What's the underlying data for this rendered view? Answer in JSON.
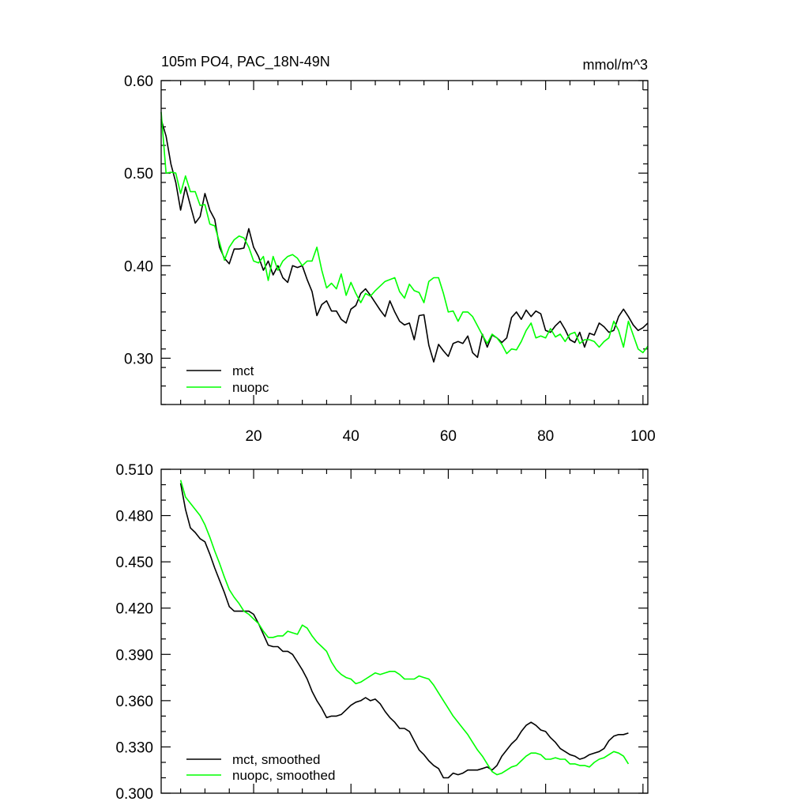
{
  "chart_data": [
    {
      "type": "line",
      "title": "105m PO4, PAC_18N-49N",
      "units_label": "mmol/m^3",
      "xlim": [
        1,
        101
      ],
      "ylim": [
        0.25,
        0.6
      ],
      "yticks": [
        0.3,
        0.4,
        0.5,
        0.6
      ],
      "ytick_labels": [
        "0.30",
        "0.40",
        "0.50",
        "0.60"
      ],
      "xticks": [
        20,
        40,
        60,
        80,
        100
      ],
      "xtick_labels": [
        "20",
        "40",
        "60",
        "80",
        "100"
      ],
      "legend_position": "bottom-left",
      "x": [
        1,
        2,
        3,
        4,
        5,
        6,
        7,
        8,
        9,
        10,
        11,
        12,
        13,
        14,
        15,
        16,
        17,
        18,
        19,
        20,
        21,
        22,
        23,
        24,
        25,
        26,
        27,
        28,
        29,
        30,
        31,
        32,
        33,
        34,
        35,
        36,
        37,
        38,
        39,
        40,
        41,
        42,
        43,
        44,
        45,
        46,
        47,
        48,
        49,
        50,
        51,
        52,
        53,
        54,
        55,
        56,
        57,
        58,
        59,
        60,
        61,
        62,
        63,
        64,
        65,
        66,
        67,
        68,
        69,
        70,
        71,
        72,
        73,
        74,
        75,
        76,
        77,
        78,
        79,
        80,
        81,
        82,
        83,
        84,
        85,
        86,
        87,
        88,
        89,
        90,
        91,
        92,
        93,
        94,
        95,
        96,
        97,
        98,
        99,
        100,
        101
      ],
      "series": [
        {
          "name": "mct",
          "color": "#000000",
          "values": [
            0.558,
            0.54,
            0.51,
            0.49,
            0.46,
            0.485,
            0.465,
            0.446,
            0.453,
            0.478,
            0.46,
            0.45,
            0.42,
            0.408,
            0.402,
            0.418,
            0.418,
            0.419,
            0.44,
            0.42,
            0.41,
            0.395,
            0.405,
            0.39,
            0.4,
            0.387,
            0.382,
            0.4,
            0.398,
            0.4,
            0.385,
            0.372,
            0.346,
            0.358,
            0.362,
            0.351,
            0.351,
            0.342,
            0.338,
            0.353,
            0.357,
            0.37,
            0.375,
            0.368,
            0.36,
            0.352,
            0.345,
            0.362,
            0.35,
            0.34,
            0.336,
            0.338,
            0.32,
            0.346,
            0.347,
            0.314,
            0.296,
            0.315,
            0.308,
            0.302,
            0.316,
            0.318,
            0.316,
            0.324,
            0.306,
            0.301,
            0.326,
            0.312,
            0.325,
            0.322,
            0.317,
            0.322,
            0.344,
            0.35,
            0.342,
            0.352,
            0.345,
            0.351,
            0.348,
            0.33,
            0.328,
            0.335,
            0.34,
            0.331,
            0.32,
            0.317,
            0.328,
            0.312,
            0.327,
            0.325,
            0.338,
            0.334,
            0.328,
            0.33,
            0.345,
            0.353,
            0.345,
            0.336,
            0.33,
            0.333,
            0.338
          ]
        },
        {
          "name": "nuopc",
          "color": "#00ff00",
          "values": [
            0.566,
            0.5,
            0.501,
            0.5,
            0.478,
            0.497,
            0.48,
            0.48,
            0.465,
            0.466,
            0.445,
            0.443,
            0.425,
            0.406,
            0.42,
            0.428,
            0.432,
            0.43,
            0.42,
            0.405,
            0.403,
            0.41,
            0.384,
            0.41,
            0.395,
            0.405,
            0.41,
            0.412,
            0.408,
            0.4,
            0.405,
            0.405,
            0.42,
            0.395,
            0.376,
            0.381,
            0.375,
            0.391,
            0.368,
            0.382,
            0.37,
            0.36,
            0.37,
            0.367,
            0.373,
            0.378,
            0.383,
            0.385,
            0.387,
            0.372,
            0.365,
            0.38,
            0.373,
            0.371,
            0.36,
            0.383,
            0.387,
            0.387,
            0.37,
            0.35,
            0.351,
            0.34,
            0.35,
            0.35,
            0.345,
            0.335,
            0.325,
            0.316,
            0.326,
            0.322,
            0.315,
            0.305,
            0.31,
            0.309,
            0.318,
            0.33,
            0.338,
            0.322,
            0.324,
            0.322,
            0.332,
            0.323,
            0.326,
            0.318,
            0.326,
            0.328,
            0.316,
            0.32,
            0.32,
            0.318,
            0.312,
            0.318,
            0.322,
            0.34,
            0.33,
            0.312,
            0.34,
            0.325,
            0.31,
            0.306,
            0.313
          ]
        }
      ]
    },
    {
      "type": "line",
      "xlim": [
        1,
        101
      ],
      "ylim": [
        0.3,
        0.51
      ],
      "yticks": [
        0.3,
        0.33,
        0.36,
        0.39,
        0.42,
        0.45,
        0.48,
        0.51
      ],
      "ytick_labels": [
        "0.300",
        "0.330",
        "0.360",
        "0.390",
        "0.420",
        "0.450",
        "0.480",
        "0.510"
      ],
      "xticks": [
        20,
        40,
        60,
        80,
        100
      ],
      "legend_position": "bottom-left",
      "x": [
        5,
        6,
        7,
        8,
        9,
        10,
        11,
        12,
        13,
        14,
        15,
        16,
        17,
        18,
        19,
        20,
        21,
        22,
        23,
        24,
        25,
        26,
        27,
        28,
        29,
        30,
        31,
        32,
        33,
        34,
        35,
        36,
        37,
        38,
        39,
        40,
        41,
        42,
        43,
        44,
        45,
        46,
        47,
        48,
        49,
        50,
        51,
        52,
        53,
        54,
        55,
        56,
        57,
        58,
        59,
        60,
        61,
        62,
        63,
        64,
        65,
        66,
        67,
        68,
        69,
        70,
        71,
        72,
        73,
        74,
        75,
        76,
        77,
        78,
        79,
        80,
        81,
        82,
        83,
        84,
        85,
        86,
        87,
        88,
        89,
        90,
        91,
        92,
        93,
        94,
        95,
        96,
        97
      ],
      "series": [
        {
          "name": "mct, smoothed",
          "color": "#000000",
          "values": [
            0.501,
            0.484,
            0.472,
            0.469,
            0.465,
            0.463,
            0.455,
            0.446,
            0.438,
            0.43,
            0.421,
            0.418,
            0.418,
            0.418,
            0.418,
            0.416,
            0.41,
            0.403,
            0.396,
            0.395,
            0.395,
            0.392,
            0.392,
            0.39,
            0.385,
            0.38,
            0.374,
            0.366,
            0.36,
            0.355,
            0.349,
            0.35,
            0.35,
            0.351,
            0.354,
            0.357,
            0.359,
            0.36,
            0.362,
            0.36,
            0.361,
            0.358,
            0.353,
            0.349,
            0.346,
            0.342,
            0.342,
            0.34,
            0.334,
            0.328,
            0.325,
            0.321,
            0.318,
            0.316,
            0.31,
            0.31,
            0.313,
            0.312,
            0.313,
            0.315,
            0.315,
            0.315,
            0.316,
            0.317,
            0.315,
            0.318,
            0.324,
            0.328,
            0.332,
            0.335,
            0.34,
            0.344,
            0.346,
            0.344,
            0.341,
            0.34,
            0.336,
            0.333,
            0.329,
            0.327,
            0.325,
            0.324,
            0.322,
            0.323,
            0.325,
            0.326,
            0.327,
            0.329,
            0.334,
            0.337,
            0.338,
            0.338,
            0.339
          ]
        },
        {
          "name": "nuopc, smoothed",
          "color": "#00ff00",
          "values": [
            0.503,
            0.492,
            0.488,
            0.484,
            0.48,
            0.474,
            0.466,
            0.457,
            0.449,
            0.44,
            0.432,
            0.427,
            0.423,
            0.418,
            0.416,
            0.413,
            0.41,
            0.405,
            0.401,
            0.401,
            0.402,
            0.402,
            0.405,
            0.404,
            0.403,
            0.409,
            0.407,
            0.402,
            0.398,
            0.395,
            0.392,
            0.385,
            0.38,
            0.377,
            0.375,
            0.374,
            0.371,
            0.372,
            0.374,
            0.376,
            0.378,
            0.377,
            0.378,
            0.379,
            0.379,
            0.377,
            0.374,
            0.374,
            0.374,
            0.376,
            0.375,
            0.374,
            0.37,
            0.365,
            0.36,
            0.355,
            0.35,
            0.346,
            0.342,
            0.338,
            0.333,
            0.328,
            0.324,
            0.319,
            0.314,
            0.312,
            0.313,
            0.315,
            0.317,
            0.318,
            0.321,
            0.324,
            0.326,
            0.326,
            0.325,
            0.322,
            0.322,
            0.323,
            0.322,
            0.322,
            0.319,
            0.319,
            0.318,
            0.318,
            0.317,
            0.32,
            0.322,
            0.323,
            0.325,
            0.327,
            0.326,
            0.324,
            0.319
          ]
        }
      ]
    }
  ]
}
